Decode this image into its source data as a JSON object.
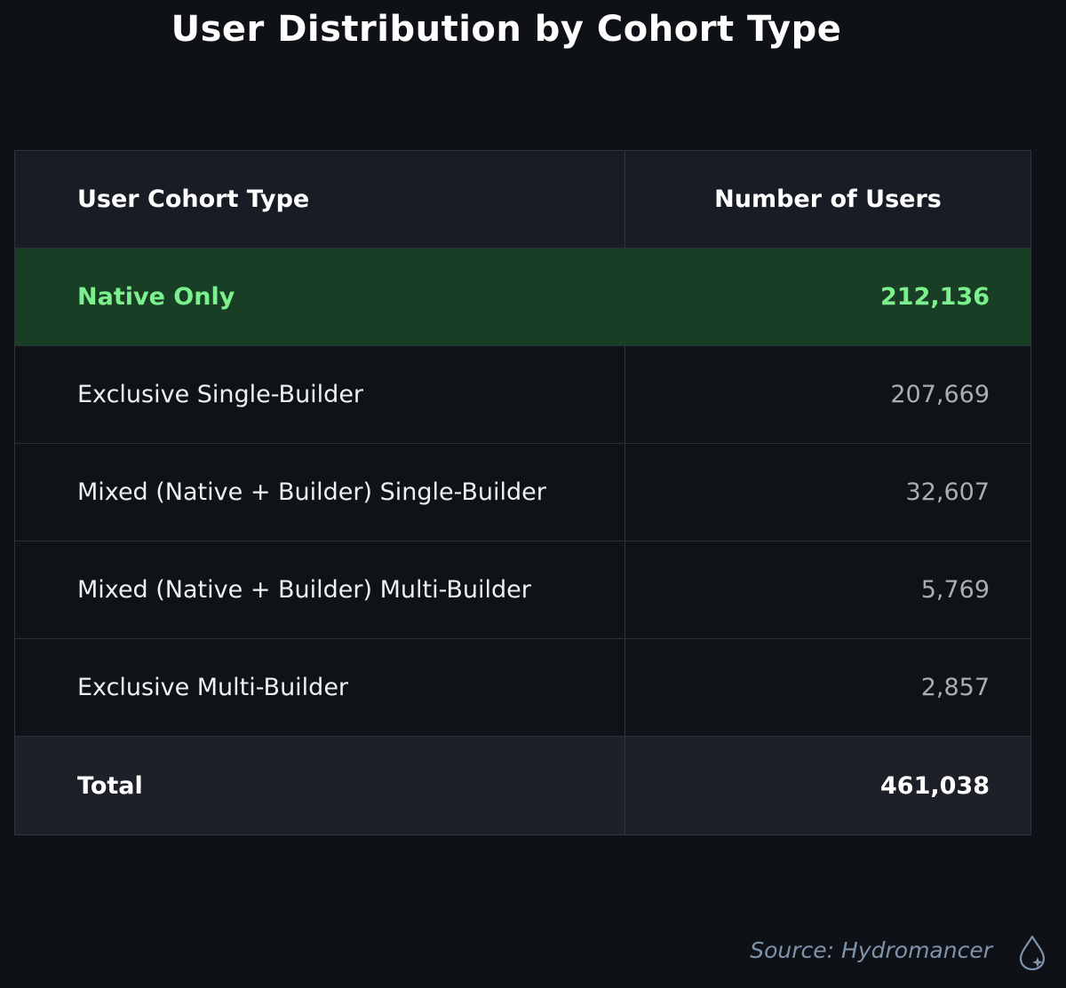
{
  "chart_data": {
    "type": "table",
    "title": "User Distribution by Cohort Type",
    "columns": [
      "User Cohort Type",
      "Number of Users"
    ],
    "rows": [
      {
        "cohort": "Native Only",
        "users": "212,136",
        "highlight": true
      },
      {
        "cohort": "Exclusive Single-Builder",
        "users": "207,669",
        "highlight": false
      },
      {
        "cohort": "Mixed (Native + Builder) Single-Builder",
        "users": "32,607",
        "highlight": false
      },
      {
        "cohort": "Mixed (Native + Builder) Multi-Builder",
        "users": "5,769",
        "highlight": false
      },
      {
        "cohort": "Exclusive Multi-Builder",
        "users": "2,857",
        "highlight": false
      }
    ],
    "total": {
      "label": "Total",
      "users": "461,038"
    }
  },
  "source": "Source: Hydromancer",
  "logo_icon": "hydromancer-droplet-icon",
  "colors": {
    "background": "#0e1116",
    "highlight_row": "#183f26",
    "highlight_text": "#7cf08c",
    "muted_value": "#a9adb4",
    "source_text": "#7e93aa"
  }
}
